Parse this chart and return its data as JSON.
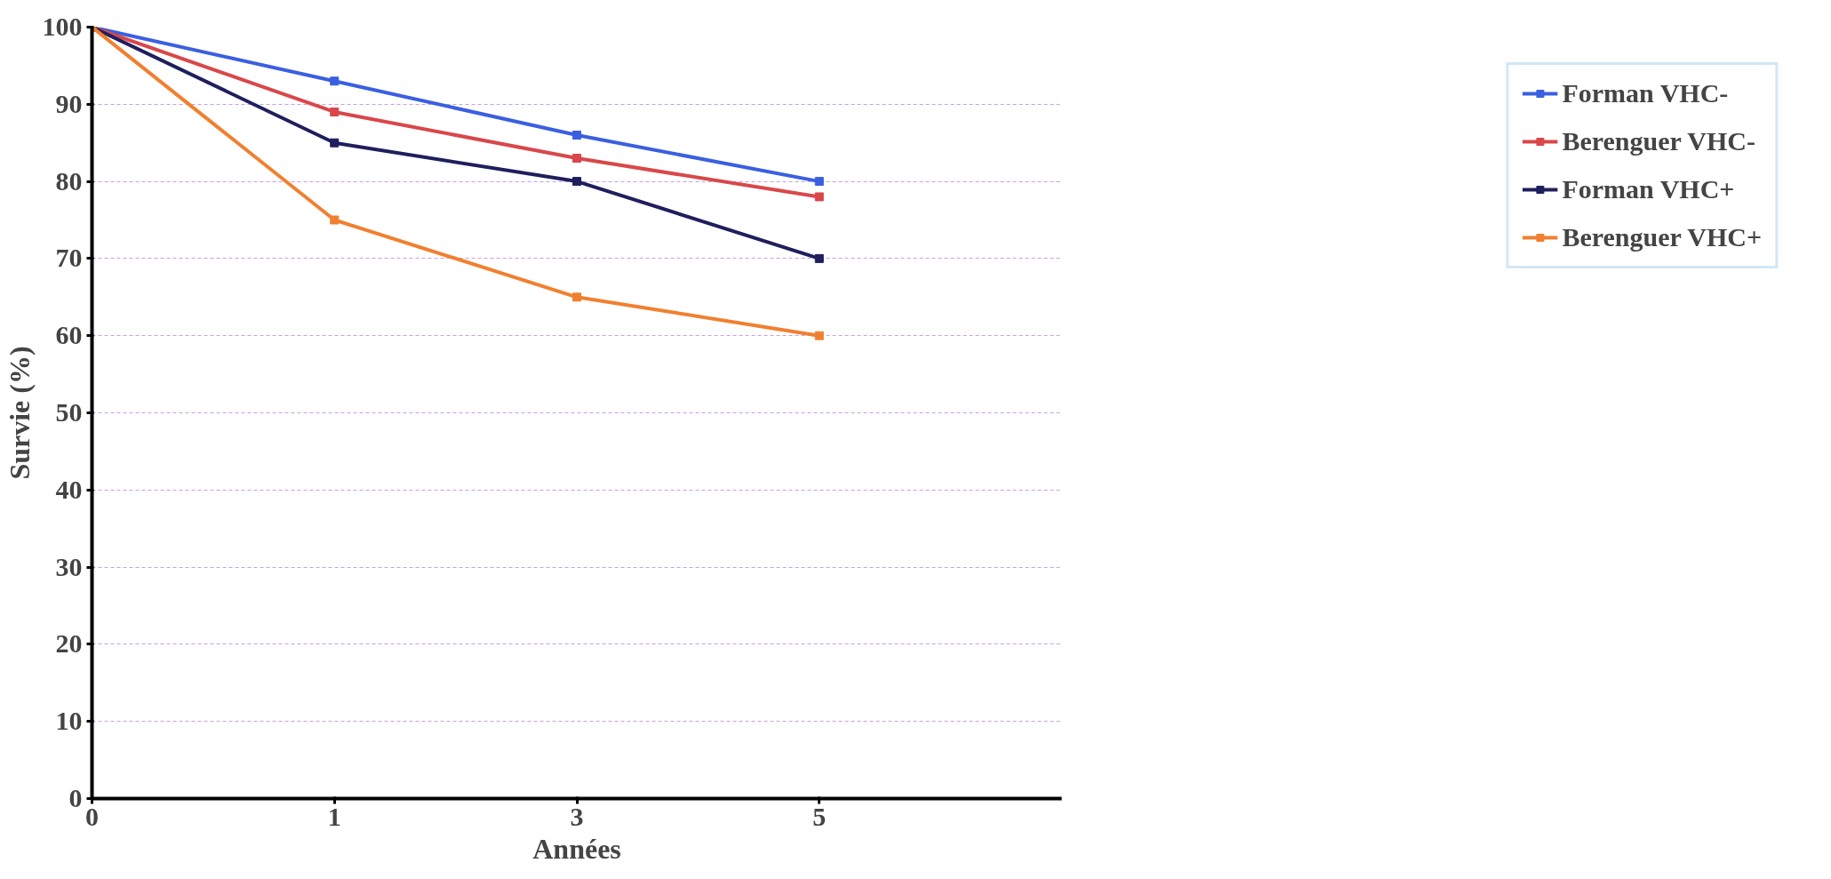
{
  "chart_data": {
    "type": "line",
    "xlabel": "Années",
    "ylabel": "Survie (%)",
    "categories": [
      "0",
      "1",
      "3",
      "5",
      null
    ],
    "series": [
      {
        "name": "Forman VHC-",
        "color": "#3a5fe0",
        "values": [
          100,
          93,
          86,
          80,
          null
        ]
      },
      {
        "name": "Berenguer VHC-",
        "color": "#d9474a",
        "values": [
          100,
          89,
          83,
          78,
          null
        ]
      },
      {
        "name": "Forman VHC+",
        "color": "#1f1f5e",
        "values": [
          100,
          85,
          80,
          70,
          null
        ]
      },
      {
        "name": "Berenguer VHC+",
        "color": "#f08030",
        "values": [
          100,
          75,
          65,
          60,
          null
        ]
      }
    ],
    "ylim": [
      0,
      100
    ],
    "yticks": [
      0,
      10,
      20,
      30,
      40,
      50,
      60,
      70,
      80,
      90,
      100
    ],
    "grid": "y",
    "legend": "right",
    "marker": "square",
    "line_style": "solid"
  }
}
